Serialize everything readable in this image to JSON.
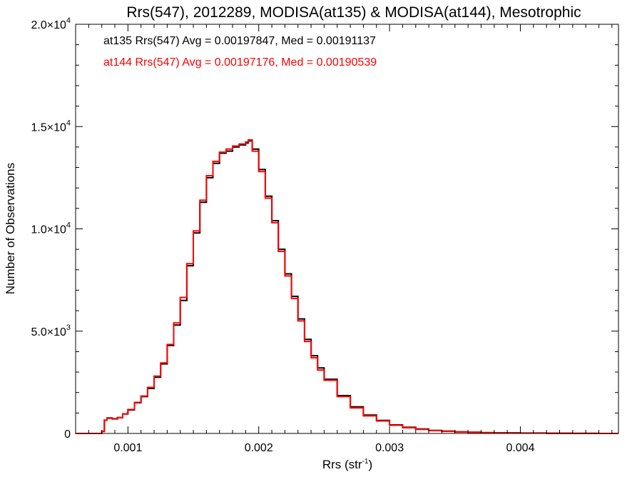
{
  "chart_data": {
    "type": "line",
    "title": "Rrs(547), 2012289, MODISA(at135) & MODISA(at144), Mesotrophic",
    "xlabel": "Rrs (str",
    "xlabel_superscript": "-1",
    "xlabel_suffix": ")",
    "ylabel": "Number of Observations",
    "xlim": [
      0.0006,
      0.00475
    ],
    "ylim": [
      0,
      20000
    ],
    "x_ticks": [
      {
        "value": 0.001,
        "label": "0.001"
      },
      {
        "value": 0.002,
        "label": "0.002"
      },
      {
        "value": 0.003,
        "label": "0.003"
      },
      {
        "value": 0.004,
        "label": "0.004"
      }
    ],
    "y_ticks": [
      {
        "value": 0,
        "label": "0",
        "sup": ""
      },
      {
        "value": 5000,
        "label": "5.0×10",
        "sup": "3"
      },
      {
        "value": 10000,
        "label": "1.0×10",
        "sup": "4"
      },
      {
        "value": 15000,
        "label": "1.5×10",
        "sup": "4"
      },
      {
        "value": 20000,
        "label": "2.0×10",
        "sup": "4"
      }
    ],
    "grid": false,
    "legend_position": "top-left",
    "annotations": [
      {
        "text": "at135 Rrs(547) Avg = 0.00197847, Med = 0.00191137",
        "color": "#000000"
      },
      {
        "text": "at144 Rrs(547) Avg = 0.00197176, Med = 0.00190539",
        "color": "#ff0000"
      }
    ],
    "series": [
      {
        "color": "#000000",
        "step": true,
        "x": [
          0.0006,
          0.00078,
          0.0008,
          0.00082,
          0.00084,
          0.00088,
          0.00092,
          0.00096,
          0.001,
          0.00105,
          0.0011,
          0.00115,
          0.0012,
          0.00125,
          0.0013,
          0.00135,
          0.0014,
          0.00145,
          0.0015,
          0.00155,
          0.0016,
          0.00165,
          0.0017,
          0.00175,
          0.0018,
          0.00185,
          0.0019,
          0.00192,
          0.00195,
          0.002,
          0.00205,
          0.0021,
          0.00215,
          0.0022,
          0.00225,
          0.0023,
          0.00235,
          0.0024,
          0.00245,
          0.0025,
          0.0026,
          0.0027,
          0.0028,
          0.0029,
          0.003,
          0.0031,
          0.0032,
          0.0033,
          0.0034,
          0.0035,
          0.0036,
          0.0037,
          0.0038,
          0.004,
          0.0042,
          0.0044,
          0.0046,
          0.00475
        ],
        "y": [
          0,
          0,
          100,
          650,
          760,
          720,
          780,
          950,
          1150,
          1500,
          1800,
          2200,
          2750,
          3400,
          4300,
          5300,
          6500,
          8200,
          9800,
          11300,
          12500,
          13200,
          13700,
          13800,
          14000,
          14100,
          14200,
          14300,
          13900,
          12900,
          11600,
          10400,
          9000,
          7800,
          6700,
          5600,
          4600,
          3800,
          3200,
          2650,
          1850,
          1300,
          900,
          640,
          420,
          300,
          220,
          150,
          110,
          80,
          60,
          40,
          30,
          20,
          10,
          5,
          0,
          0
        ]
      },
      {
        "color": "#ff0000",
        "step": true,
        "x": [
          0.0006,
          0.00078,
          0.0008,
          0.00082,
          0.00084,
          0.00088,
          0.00092,
          0.00096,
          0.001,
          0.00105,
          0.0011,
          0.00115,
          0.0012,
          0.00125,
          0.0013,
          0.00135,
          0.0014,
          0.00145,
          0.0015,
          0.00155,
          0.0016,
          0.00165,
          0.0017,
          0.00175,
          0.0018,
          0.00185,
          0.0019,
          0.00192,
          0.00195,
          0.002,
          0.00205,
          0.0021,
          0.00215,
          0.0022,
          0.00225,
          0.0023,
          0.00235,
          0.0024,
          0.00245,
          0.0025,
          0.0026,
          0.0027,
          0.0028,
          0.0029,
          0.003,
          0.0031,
          0.0032,
          0.0033,
          0.0034,
          0.0035,
          0.0036,
          0.0037,
          0.0038,
          0.004,
          0.0042,
          0.0044,
          0.0046,
          0.00475
        ],
        "y": [
          0,
          0,
          100,
          650,
          740,
          710,
          770,
          960,
          1170,
          1520,
          1830,
          2250,
          2800,
          3450,
          4350,
          5400,
          6650,
          8300,
          9900,
          11400,
          12600,
          13300,
          13750,
          13900,
          14050,
          14150,
          14250,
          14350,
          13800,
          12800,
          11500,
          10300,
          8900,
          7700,
          6600,
          5500,
          4500,
          3700,
          3100,
          2600,
          1800,
          1250,
          860,
          610,
          400,
          280,
          200,
          140,
          100,
          75,
          55,
          38,
          28,
          18,
          9,
          4,
          0,
          0
        ]
      }
    ]
  }
}
